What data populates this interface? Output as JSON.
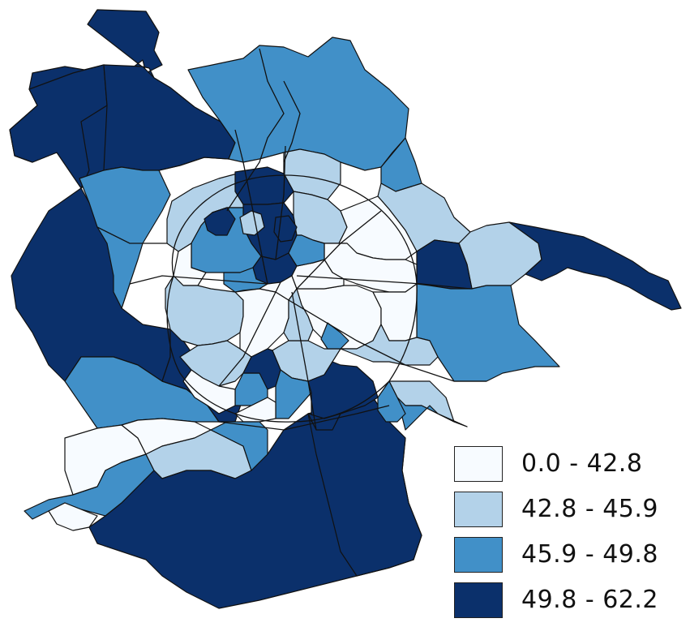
{
  "classes": [
    {
      "label": "0.0 - 42.8",
      "color": "#f7fbff"
    },
    {
      "label": "42.8 - 45.9",
      "color": "#b3d2e9"
    },
    {
      "label": "45.9 - 49.8",
      "color": "#4190c8"
    },
    {
      "label": "49.8 - 62.2",
      "color": "#0b306b"
    }
  ],
  "border_color": "#111111"
}
